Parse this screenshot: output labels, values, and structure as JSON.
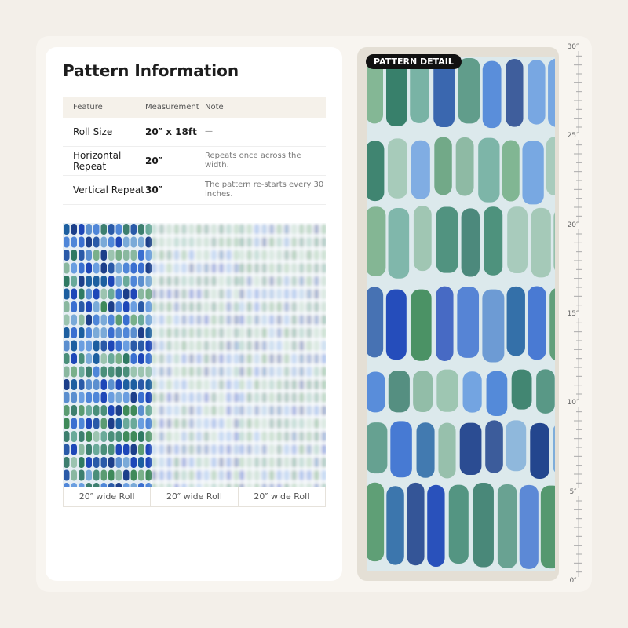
{
  "header": {
    "title": "Pattern Information"
  },
  "table": {
    "columns": [
      "Feature",
      "Measurement",
      "Note"
    ],
    "rows": [
      [
        "Roll Size",
        "20″ x 18ft",
        "—"
      ],
      [
        "Horizontal Repeat",
        "20″",
        "Repeats once across the width."
      ],
      [
        "Vertical Repeat",
        "30″",
        "The pattern re-starts every 30 inches."
      ]
    ]
  },
  "rolls": {
    "labels": [
      "20″ wide Roll",
      "20″ wide Roll",
      "20″ wide Roll"
    ]
  },
  "detail": {
    "badge": "PATTERN DETAIL"
  },
  "ruler": {
    "labels": [
      "0″",
      "5″",
      "10″",
      "15″",
      "20″",
      "25″",
      "30″"
    ]
  }
}
